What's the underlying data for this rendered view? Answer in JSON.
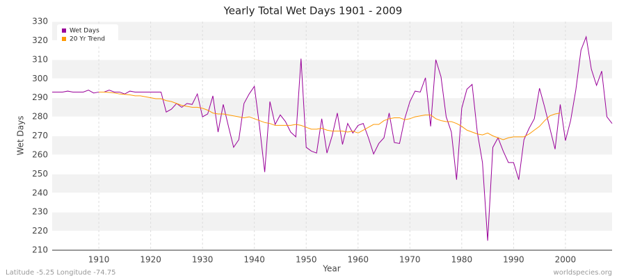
{
  "chart_data": {
    "type": "line",
    "title": "Yearly Total Wet Days 1901 - 2009",
    "x_label": "Year",
    "y_label": "Wet Days",
    "footer_left": "Latitude -5.25 Longitude -74.75",
    "footer_right": "worldspecies.org",
    "legend": "upper left",
    "grid": true,
    "xlim": [
      1901,
      2009
    ],
    "xticks": [
      1910,
      1920,
      1930,
      1940,
      1950,
      1960,
      1970,
      1980,
      1990,
      2000
    ],
    "ylim": [
      210,
      330
    ],
    "yticks": [
      210,
      220,
      230,
      240,
      250,
      260,
      270,
      280,
      290,
      300,
      310,
      320,
      330
    ],
    "x": [
      1901,
      1902,
      1903,
      1904,
      1905,
      1906,
      1907,
      1908,
      1909,
      1910,
      1911,
      1912,
      1913,
      1914,
      1915,
      1916,
      1917,
      1918,
      1919,
      1920,
      1921,
      1922,
      1923,
      1924,
      1925,
      1926,
      1927,
      1928,
      1929,
      1930,
      1931,
      1932,
      1933,
      1934,
      1935,
      1936,
      1937,
      1938,
      1939,
      1940,
      1941,
      1942,
      1943,
      1944,
      1945,
      1946,
      1947,
      1948,
      1949,
      1950,
      1951,
      1952,
      1953,
      1954,
      1955,
      1956,
      1957,
      1958,
      1959,
      1960,
      1961,
      1962,
      1963,
      1964,
      1965,
      1966,
      1967,
      1968,
      1969,
      1970,
      1971,
      1972,
      1973,
      1974,
      1975,
      1976,
      1977,
      1978,
      1979,
      1980,
      1981,
      1982,
      1983,
      1984,
      1985,
      1986,
      1987,
      1988,
      1989,
      1990,
      1991,
      1992,
      1993,
      1994,
      1995,
      1996,
      1997,
      1998,
      1999,
      2000,
      2001,
      2002,
      2003,
      2004,
      2005,
      2006,
      2007,
      2008,
      2009
    ],
    "series": [
      {
        "name": "Wet Days",
        "color": "#990099",
        "values": [
          293,
          293,
          293,
          293.5,
          293,
          293,
          293,
          294,
          292.5,
          293,
          293,
          294,
          293,
          293,
          292,
          293.5,
          293,
          293,
          293,
          293,
          293,
          293,
          282.5,
          284,
          287,
          285,
          287,
          286.5,
          292,
          280,
          281.5,
          291,
          272,
          286.5,
          275,
          264,
          268,
          287,
          292,
          296,
          275,
          251,
          288,
          276,
          281,
          277.5,
          272,
          269.5,
          310.5,
          264,
          262,
          261,
          279,
          261,
          270,
          282,
          265.5,
          276.5,
          271.5,
          275.5,
          276.5,
          269,
          260.5,
          266,
          269,
          282,
          266.5,
          266,
          279,
          288,
          293.5,
          293,
          300.5,
          275,
          310,
          301,
          280,
          272,
          247,
          284.5,
          294.5,
          297,
          272,
          256,
          215,
          264,
          269,
          262,
          256,
          256,
          247,
          268,
          274,
          279,
          295,
          285,
          274,
          263,
          286.5,
          267.5,
          278,
          294,
          315,
          322,
          305,
          296.5,
          304,
          280,
          276.5
        ]
      },
      {
        "name": "20 Yr Trend",
        "color": "#ff9900",
        "values": [
          null,
          null,
          null,
          null,
          null,
          null,
          null,
          null,
          null,
          293,
          293,
          292.8,
          292.5,
          292,
          291.8,
          291.5,
          291,
          291,
          290.5,
          290,
          289.5,
          289.5,
          288.5,
          288,
          287,
          286,
          285.5,
          285,
          285,
          284.5,
          283.5,
          282,
          281.5,
          281.5,
          281,
          280.5,
          280,
          279.5,
          280,
          279,
          278,
          277,
          276.5,
          275.5,
          275.5,
          275.5,
          275.5,
          276,
          275.5,
          274.5,
          273.5,
          273.5,
          274,
          273,
          272.5,
          272.5,
          272.5,
          272,
          272.5,
          271.5,
          273,
          274.5,
          276,
          276,
          278,
          279,
          279.5,
          279.5,
          278.5,
          279,
          280,
          280.5,
          281,
          281,
          279,
          278,
          277.5,
          277.5,
          276.5,
          275,
          273,
          272,
          271,
          270.5,
          271.5,
          270,
          269,
          268,
          269,
          269.5,
          269.5,
          269.5,
          271,
          273,
          275,
          278,
          280.5,
          281.5,
          282,
          null,
          null,
          null,
          null,
          null,
          null,
          null,
          null,
          null,
          null
        ]
      }
    ]
  }
}
